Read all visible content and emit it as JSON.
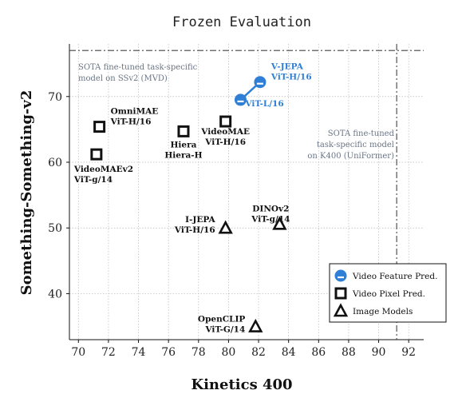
{
  "chart_data": {
    "type": "scatter",
    "title": "Frozen Evaluation",
    "xlabel": "Kinetics 400",
    "ylabel": "Something-Something-v2",
    "xlim": [
      69.4,
      93.0
    ],
    "ylim": [
      33.0,
      78.0
    ],
    "xticks": [
      70,
      72,
      74,
      76,
      78,
      80,
      82,
      84,
      86,
      88,
      90,
      92
    ],
    "yticks": [
      40,
      50,
      60,
      70
    ],
    "grid": true,
    "legend_position": "bottom-right",
    "colors": {
      "feature": "#2f7fd6",
      "marker": "#111111",
      "annotation": "#6a7585"
    },
    "series": [
      {
        "name": "Video Feature Pred.",
        "marker": "circle",
        "connected": true,
        "points": [
          {
            "x": 80.8,
            "y": 69.5,
            "label_lines": [
              "ViT-L/16"
            ]
          },
          {
            "x": 82.1,
            "y": 72.2,
            "label_lines": [
              "V-JEPA",
              "ViT-H/16"
            ]
          }
        ]
      },
      {
        "name": "Video Pixel Pred.",
        "marker": "square",
        "points": [
          {
            "x": 71.4,
            "y": 65.4,
            "label_lines": [
              "OmniMAE",
              "ViT-H/16"
            ]
          },
          {
            "x": 71.2,
            "y": 61.2,
            "label_lines": [
              "VideoMAEv2",
              "ViT-g/14"
            ]
          },
          {
            "x": 77.0,
            "y": 64.7,
            "label_lines": [
              "Hiera",
              "Hiera-H"
            ]
          },
          {
            "x": 79.8,
            "y": 66.2,
            "label_lines": [
              "VideoMAE",
              "ViT-H/16"
            ]
          }
        ]
      },
      {
        "name": "Image Models",
        "marker": "triangle",
        "points": [
          {
            "x": 79.8,
            "y": 50.0,
            "label_lines": [
              "I-JEPA",
              "ViT-H/16"
            ]
          },
          {
            "x": 83.4,
            "y": 50.6,
            "label_lines": [
              "DINOv2",
              "ViT-g/14"
            ]
          },
          {
            "x": 81.8,
            "y": 35.0,
            "label_lines": [
              "OpenCLIP",
              "ViT-G/14"
            ]
          }
        ]
      }
    ],
    "reference_lines": [
      {
        "axis": "y",
        "value": 77.0,
        "label_lines": [
          "SOTA  fine-tuned  task-specific",
          "model  on  SSv2  (MVD)"
        ]
      },
      {
        "axis": "x",
        "value": 91.2,
        "label_lines": [
          "SOTA  fine-tuned",
          "task-specific model",
          "on  K400  (UniFormer)"
        ]
      }
    ]
  }
}
